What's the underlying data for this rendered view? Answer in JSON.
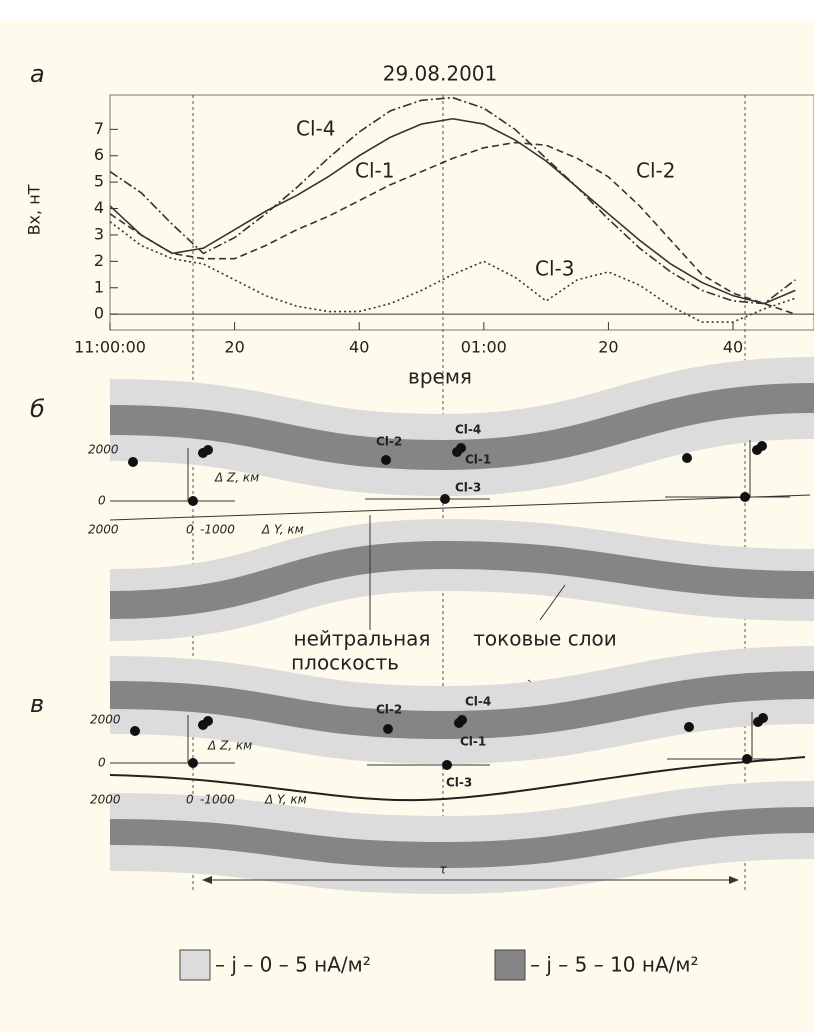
{
  "chart_data": {
    "type": "line",
    "panel_label": "а",
    "title": "29.08.2001",
    "x_label": "время",
    "y_label": "Bx, нТ",
    "x": [
      0,
      5,
      10,
      15,
      20,
      25,
      30,
      35,
      40,
      45,
      50,
      55,
      60,
      65,
      70,
      75,
      80,
      85,
      90,
      95,
      100,
      105,
      110
    ],
    "xlim": [
      0,
      113
    ],
    "xticks": [
      {
        "value": 0,
        "label": "11:00:00"
      },
      20,
      40,
      {
        "value": 60,
        "label": "01:00"
      },
      {
        "value": 80,
        "label": "20"
      },
      {
        "value": 100,
        "label": "40"
      }
    ],
    "ylim": [
      -0.6,
      8.3
    ],
    "yticks": [
      0,
      1,
      2,
      3,
      4,
      5,
      6,
      7
    ],
    "series": [
      {
        "name": "Cl-1",
        "color": "#333333",
        "style": "solid",
        "values": [
          4.1,
          3.0,
          2.3,
          2.5,
          3.2,
          3.9,
          4.5,
          5.2,
          6.0,
          6.7,
          7.2,
          7.4,
          7.2,
          6.6,
          5.8,
          4.8,
          3.8,
          2.8,
          1.9,
          1.2,
          0.7,
          0.4,
          0.9
        ]
      },
      {
        "name": "Cl-4",
        "color": "#333333",
        "style": "dashdot",
        "values": [
          5.4,
          4.6,
          3.4,
          2.3,
          2.9,
          3.8,
          4.8,
          5.9,
          6.9,
          7.7,
          8.1,
          8.2,
          7.8,
          7.0,
          5.9,
          4.8,
          3.6,
          2.5,
          1.6,
          0.9,
          0.5,
          0.4,
          1.3
        ]
      },
      {
        "name": "Cl-2",
        "color": "#333333",
        "style": "dashed",
        "values": [
          3.8,
          3.0,
          2.3,
          2.1,
          2.1,
          2.6,
          3.2,
          3.7,
          4.3,
          4.9,
          5.4,
          5.9,
          6.3,
          6.5,
          6.4,
          5.9,
          5.2,
          4.1,
          2.8,
          1.5,
          0.8,
          0.4,
          0.0
        ]
      },
      {
        "name": "Cl-3",
        "color": "#333333",
        "style": "dotted",
        "values": [
          3.5,
          2.6,
          2.1,
          1.9,
          1.3,
          0.7,
          0.3,
          0.1,
          0.1,
          0.4,
          0.9,
          1.5,
          2.0,
          1.4,
          0.5,
          1.3,
          1.6,
          1.1,
          0.3,
          -0.3,
          -0.3,
          0.2,
          0.6
        ]
      }
    ]
  },
  "diagram": {
    "panels": [
      {
        "label": "б",
        "z_ticks": [
          "2000",
          "0"
        ],
        "y_ticks": [
          "2000",
          "0",
          "-1000"
        ],
        "z_axis": "Δ Z, км",
        "y_axis": "Δ Y, км",
        "spacecraft": [
          "Cl-2",
          "Cl-4",
          "Cl-1",
          "Cl-3"
        ]
      },
      {
        "label": "в",
        "z_ticks": [
          "2000",
          "0"
        ],
        "y_ticks": [
          "2000",
          "0",
          "-1000"
        ],
        "z_axis": "Δ Z, км",
        "y_axis": "Δ Y, км",
        "spacecraft": [
          "Cl-2",
          "Cl-4",
          "Cl-1",
          "Cl-3"
        ]
      }
    ],
    "neutral_plane": [
      "нейтральная",
      "плоскость"
    ],
    "current_sheets": "токовые слои",
    "tau": "τ",
    "legend": [
      "– j – 0 – 5 нА/м²",
      "– j – 5 – 10 нА/м²"
    ]
  }
}
